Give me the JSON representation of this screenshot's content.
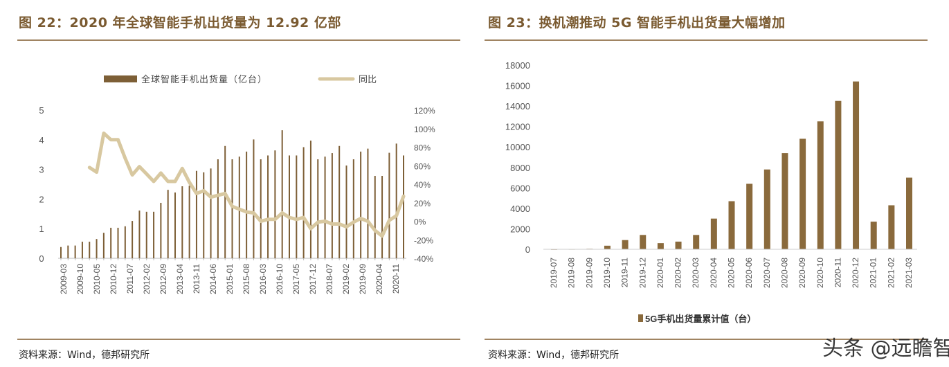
{
  "left": {
    "title": "图 22：2020 年全球智能手机出货量为 12.92 亿部",
    "source": "资料来源：Wind，德邦研究所"
  },
  "right": {
    "title": "图 23：换机潮推动 5G 智能手机出货量大幅增加",
    "source": "资料来源：Wind，德邦研究所"
  },
  "watermark": "头条 @远瞻智库",
  "chart_data": [
    {
      "type": "bar+line",
      "legend": [
        "全球智能手机出货量（亿台）",
        "同比"
      ],
      "legend_position": "top",
      "y_left": {
        "range": [
          0,
          5
        ],
        "ticks": [
          "0",
          "1",
          "2",
          "3",
          "4",
          "5"
        ]
      },
      "y_right": {
        "range": [
          -40,
          120
        ],
        "ticks": [
          "-40%",
          "-20%",
          "0%",
          "20%",
          "40%",
          "60%",
          "80%",
          "100%",
          "120%"
        ]
      },
      "x_tick_labels": [
        "2009-03",
        "2009-10",
        "2010-05",
        "2010-12",
        "2011-07",
        "2012-02",
        "2012-09",
        "2013-04",
        "2013-11",
        "2014-06",
        "2015-01",
        "2015-08",
        "2016-03",
        "2016-10",
        "2017-05",
        "2017-12",
        "2018-07",
        "2019-02",
        "2019-09",
        "2020-04",
        "2020-11"
      ],
      "series": [
        {
          "name": "全球智能手机出货量（亿台）",
          "type": "bar",
          "color": "#7d5f36",
          "values": [
            0.38,
            0.43,
            0.43,
            0.56,
            0.56,
            0.65,
            0.86,
            1.03,
            1.03,
            1.08,
            1.26,
            1.61,
            1.57,
            1.57,
            1.87,
            2.31,
            2.22,
            2.43,
            2.45,
            2.95,
            2.9,
            3.03,
            3.34,
            3.79,
            3.34,
            3.43,
            3.6,
            4.01,
            3.34,
            3.47,
            3.64,
            4.32,
            3.47,
            3.47,
            3.75,
            3.97,
            3.34,
            3.43,
            3.55,
            3.79,
            3.13,
            3.34,
            3.6,
            3.7,
            2.78,
            2.78,
            3.56,
            3.87,
            3.47
          ]
        },
        {
          "name": "同比",
          "type": "line",
          "color": "#d8c8a0",
          "values": [
            null,
            null,
            null,
            null,
            58,
            53,
            95,
            88,
            88,
            68,
            50,
            59,
            51,
            43,
            52,
            43,
            43,
            57,
            42,
            30,
            33,
            26,
            28,
            30,
            16,
            13,
            10,
            9,
            0,
            2,
            2,
            9,
            4,
            2,
            4,
            -8,
            -1,
            0,
            -3,
            -3,
            -6,
            -1,
            3,
            0,
            -10,
            -16,
            1,
            6,
            27
          ]
        }
      ]
    },
    {
      "type": "bar",
      "categories": [
        "2019-07",
        "2019-08",
        "2019-09",
        "2019-10",
        "2019-11",
        "2019-12",
        "2020-01",
        "2020-02",
        "2020-03",
        "2020-04",
        "2020-05",
        "2020-06",
        "2020-07",
        "2020-08",
        "2020-09",
        "2020-10",
        "2020-11",
        "2020-12",
        "2021-01",
        "2021-02",
        "2021-03"
      ],
      "series": [
        {
          "name": "5G手机出货量累计值（台）",
          "color": "#8a6a3c",
          "values": [
            20,
            30,
            50,
            350,
            900,
            1400,
            600,
            750,
            1400,
            3000,
            4700,
            6400,
            7800,
            9400,
            10800,
            12500,
            14500,
            16400,
            2700,
            4300,
            7000
          ]
        }
      ],
      "ylim": [
        0,
        18000
      ],
      "y_ticks": [
        "0",
        "2000",
        "4000",
        "6000",
        "8000",
        "10000",
        "12000",
        "14000",
        "16000",
        "18000"
      ],
      "legend_position": "bottom"
    }
  ]
}
